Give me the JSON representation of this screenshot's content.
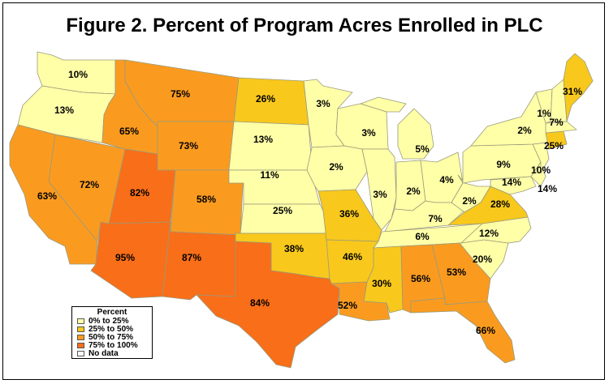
{
  "title": "Figure 2.  Percent of Program Acres Enrolled in PLC",
  "legend": {
    "title": "Percent",
    "items": [
      {
        "label": "0% to 25%",
        "color": "#ffffa8"
      },
      {
        "label": "25% to 50%",
        "color": "#f8c81c"
      },
      {
        "label": "50% to 75%",
        "color": "#fa9b20"
      },
      {
        "label": "75% to 100%",
        "color": "#f96e18"
      },
      {
        "label": "No data",
        "color": "#ffffff"
      }
    ]
  },
  "states": [
    {
      "name": "Washington",
      "value": "10%"
    },
    {
      "name": "Oregon",
      "value": "13%"
    },
    {
      "name": "California",
      "value": "63%"
    },
    {
      "name": "Nevada",
      "value": "72%"
    },
    {
      "name": "Idaho",
      "value": "65%"
    },
    {
      "name": "Montana",
      "value": "75%"
    },
    {
      "name": "Wyoming",
      "value": "73%"
    },
    {
      "name": "Utah",
      "value": "82%"
    },
    {
      "name": "Colorado",
      "value": "58%"
    },
    {
      "name": "Arizona",
      "value": "95%"
    },
    {
      "name": "New Mexico",
      "value": "87%"
    },
    {
      "name": "North Dakota",
      "value": "26%"
    },
    {
      "name": "South Dakota",
      "value": "13%"
    },
    {
      "name": "Nebraska",
      "value": "11%"
    },
    {
      "name": "Kansas",
      "value": "25%"
    },
    {
      "name": "Oklahoma",
      "value": "38%"
    },
    {
      "name": "Texas",
      "value": "84%"
    },
    {
      "name": "Minnesota",
      "value": "3%"
    },
    {
      "name": "Iowa",
      "value": "2%"
    },
    {
      "name": "Missouri",
      "value": "36%"
    },
    {
      "name": "Arkansas",
      "value": "46%"
    },
    {
      "name": "Louisiana",
      "value": "52%"
    },
    {
      "name": "Wisconsin",
      "value": "3%"
    },
    {
      "name": "Illinois",
      "value": "3%"
    },
    {
      "name": "Michigan",
      "value": "5%"
    },
    {
      "name": "Indiana",
      "value": "2%"
    },
    {
      "name": "Ohio",
      "value": "4%"
    },
    {
      "name": "Kentucky",
      "value": "2%"
    },
    {
      "name": "Tennessee",
      "value": "7%"
    },
    {
      "name": "Mississippi",
      "value": "30%"
    },
    {
      "name": "Alabama",
      "value": "56%"
    },
    {
      "name": "Georgia",
      "value": "53%"
    },
    {
      "name": "Florida",
      "value": "66%"
    },
    {
      "name": "South Carolina",
      "value": "20%"
    },
    {
      "name": "North Carolina",
      "value": "12%"
    },
    {
      "name": "Virginia",
      "value": "28%"
    },
    {
      "name": "West Virginia",
      "value": "14%"
    },
    {
      "name": "Maryland",
      "value": "14%"
    },
    {
      "name": "Delaware",
      "value": "10%"
    },
    {
      "name": "Pennsylvania",
      "value": "9%"
    },
    {
      "name": "New York",
      "value": "2%"
    },
    {
      "name": "Vermont",
      "value": "1%"
    },
    {
      "name": "New Hampshire",
      "value": "7%"
    },
    {
      "name": "Maine",
      "value": "31%"
    },
    {
      "name": "Connecticut",
      "value": "25%"
    },
    {
      "name": "Southeast",
      "value": "6%"
    }
  ]
}
